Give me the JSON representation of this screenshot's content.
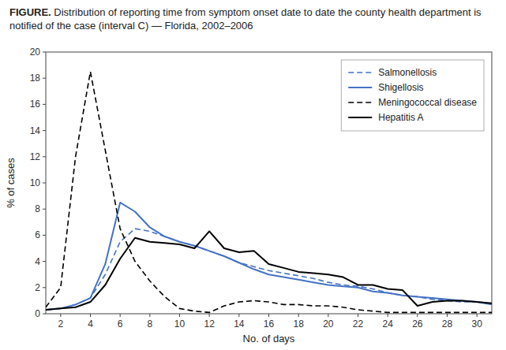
{
  "chart_data": {
    "type": "line",
    "title": "FIGURE. Distribution of reporting time from symptom onset date to date the county health department is notified of the case (interval C) — Florida, 2002–2006",
    "x_label": "No. of days",
    "y_label": "% of cases",
    "x": [
      1,
      2,
      3,
      4,
      5,
      6,
      7,
      8,
      9,
      10,
      11,
      12,
      13,
      14,
      15,
      16,
      17,
      18,
      19,
      20,
      21,
      22,
      23,
      24,
      25,
      26,
      27,
      28,
      29,
      30,
      31
    ],
    "series": [
      {
        "name": "Salmonellosis",
        "color": "#4472c4",
        "line_style": "dashed",
        "values": [
          0.3,
          0.4,
          0.7,
          1.2,
          3.0,
          5.5,
          6.5,
          6.3,
          5.9,
          5.5,
          5.2,
          4.8,
          4.4,
          3.9,
          3.6,
          3.3,
          3.1,
          2.9,
          2.7,
          2.4,
          2.2,
          2.1,
          1.9,
          1.6,
          1.4,
          1.3,
          1.1,
          1.0,
          0.9,
          0.9,
          0.8
        ]
      },
      {
        "name": "Shigellosis",
        "color": "#4472c4",
        "line_style": "solid",
        "values": [
          0.3,
          0.4,
          0.7,
          1.2,
          3.8,
          8.5,
          7.8,
          6.6,
          5.9,
          5.5,
          5.2,
          4.8,
          4.4,
          3.9,
          3.4,
          3.0,
          2.8,
          2.6,
          2.4,
          2.2,
          2.1,
          2.0,
          1.7,
          1.6,
          1.4,
          1.3,
          1.2,
          1.1,
          1.0,
          0.9,
          0.7
        ]
      },
      {
        "name": "Meningococcal disease",
        "color": "#000000",
        "line_style": "dashed",
        "values": [
          0.5,
          2.0,
          12.0,
          18.5,
          12.5,
          6.5,
          4.0,
          2.5,
          1.3,
          0.4,
          0.2,
          0.1,
          0.6,
          0.9,
          1.0,
          0.9,
          0.7,
          0.7,
          0.6,
          0.6,
          0.5,
          0.3,
          0.2,
          0.1,
          0.1,
          0.1,
          0.1,
          0.1,
          0.1,
          0.1,
          0.1
        ]
      },
      {
        "name": "Hepatitis A",
        "color": "#000000",
        "line_style": "solid",
        "values": [
          0.3,
          0.4,
          0.5,
          0.9,
          2.2,
          4.2,
          5.8,
          5.5,
          5.4,
          5.3,
          5.0,
          6.3,
          5.0,
          4.7,
          4.8,
          3.8,
          3.5,
          3.2,
          3.1,
          3.0,
          2.8,
          2.2,
          2.2,
          1.9,
          1.8,
          0.6,
          0.9,
          1.0,
          1.0,
          0.9,
          0.8
        ]
      }
    ],
    "xlim": [
      1,
      31
    ],
    "ylim": [
      0,
      20
    ],
    "xticks": [
      2,
      4,
      6,
      8,
      10,
      12,
      14,
      16,
      18,
      20,
      22,
      24,
      26,
      28,
      30
    ],
    "yticks": [
      0,
      2,
      4,
      6,
      8,
      10,
      12,
      14,
      16,
      18,
      20
    ],
    "grid": false,
    "legend": "upper right"
  }
}
